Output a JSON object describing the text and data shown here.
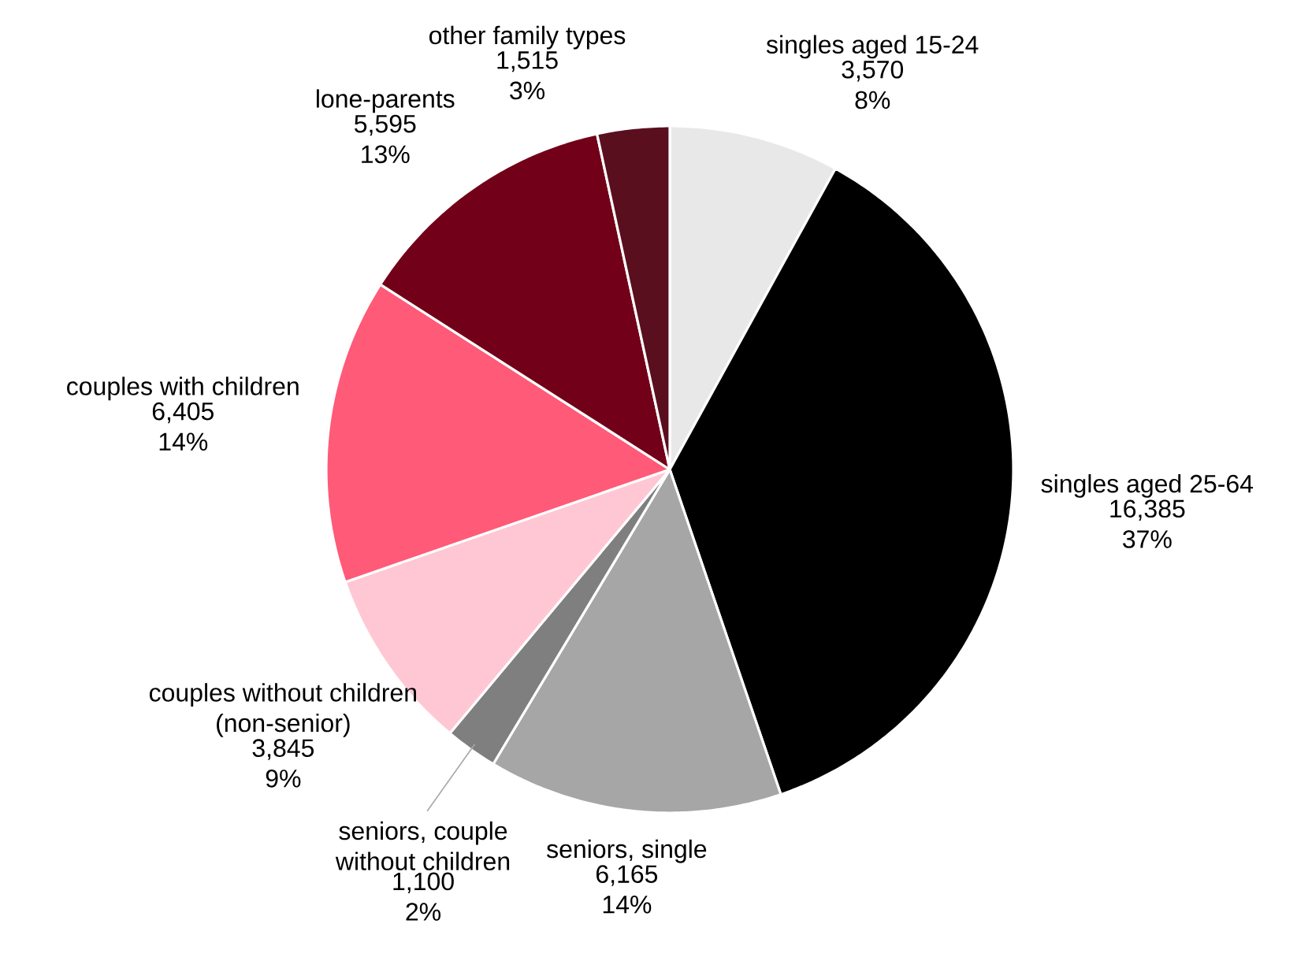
{
  "chart_data": {
    "type": "pie",
    "categories": [
      "singles aged 15-24",
      "singles aged 25-64",
      "seniors, single",
      "seniors, couple without children",
      "couples without children (non-senior)",
      "couples with children",
      "lone-parents",
      "other family types"
    ],
    "values": [
      3570,
      16385,
      6165,
      1100,
      3845,
      6405,
      5595,
      1515
    ],
    "value_labels": [
      "3,570 8%",
      "16,385 37%",
      "6,165 14%",
      "1,100 2%",
      "3,845 9%",
      "6,405 14%",
      "5,595 13%",
      "1,515 3%"
    ],
    "colors": [
      "#e8e8e8",
      "#000000",
      "#a6a6a6",
      "#7f7f7f",
      "#ffc7d4",
      "#ff5a78",
      "#720018",
      "#5a0f1e"
    ]
  }
}
